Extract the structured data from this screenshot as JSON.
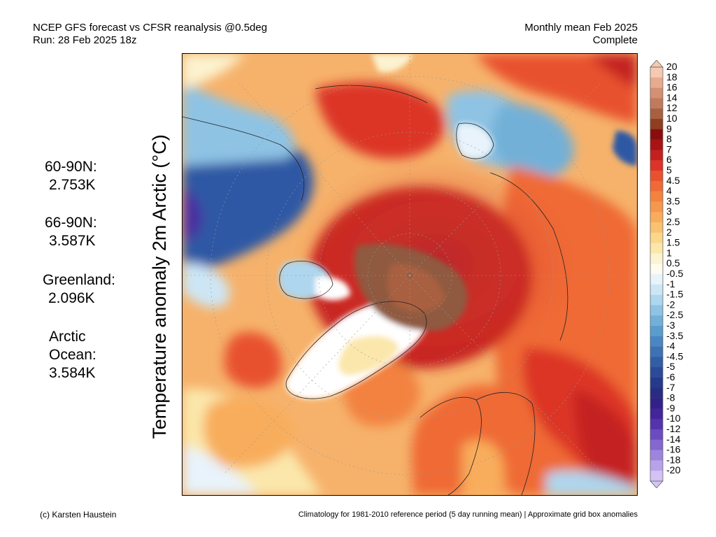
{
  "header": {
    "line1": "NCEP GFS forecast vs CFSR reanalysis @0.5deg",
    "line2": "Run: 28 Feb 2025 18z",
    "right1": "Monthly mean Feb 2025",
    "right2": "Complete"
  },
  "ylabel": "Temperature anomaly 2m Arctic (°C)",
  "stats": [
    {
      "label": "60-90N:",
      "value": "2.753K"
    },
    {
      "label": "66-90N:",
      "value": "3.587K"
    },
    {
      "label": "Greenland:",
      "value": "2.096K"
    },
    {
      "label": "Arctic",
      "label2": "Ocean:",
      "value": "3.584K"
    }
  ],
  "footer": {
    "left": "(c) Karsten Haustein",
    "right": "Climatology for 1981-2010 reference period (5 day running mean) | Approximate grid box anomalies"
  },
  "colorbar": {
    "labels": [
      "20",
      "18",
      "16",
      "14",
      "12",
      "10",
      "9",
      "8",
      "7",
      "6",
      "5",
      "4.5",
      "4",
      "3.5",
      "3",
      "2.5",
      "2",
      "1.5",
      "1",
      "0.5",
      "-0.5",
      "-1",
      "-1.5",
      "-2",
      "-2.5",
      "-3",
      "-3.5",
      "-4",
      "-4.5",
      "-5",
      "-6",
      "-7",
      "-8",
      "-9",
      "-10",
      "-12",
      "-14",
      "-16",
      "-18",
      "-20"
    ],
    "colors": [
      "#f6c9b3",
      "#e8ab90",
      "#d49072",
      "#c07a5c",
      "#a9603f",
      "#8f3f20",
      "#8a0d0d",
      "#a81313",
      "#c42020",
      "#dc3428",
      "#e8512f",
      "#ef6a36",
      "#f3823f",
      "#f6984b",
      "#f8ad5c",
      "#f9c270",
      "#fad78a",
      "#fbe7ab",
      "#fcf3d0",
      "#fffbef",
      "#e8f3fb",
      "#cde6f5",
      "#aed6ee",
      "#8ec3e4",
      "#72b0d8",
      "#5a9cce",
      "#4a87c2",
      "#3e72b4",
      "#335ea5",
      "#2b4b98",
      "#253a8b",
      "#2a2c82",
      "#33218a",
      "#43249a",
      "#5533ad",
      "#6b4cc0",
      "#8467cf",
      "#9d84dd",
      "#b8a3ea",
      "#d2c3f3"
    ]
  },
  "map": {
    "regions": [
      {
        "name": "central-arctic-anomaly",
        "color": "#8f5a3f"
      },
      {
        "name": "greenland",
        "color": "#ffffff"
      },
      {
        "name": "north-america-cold-anomaly",
        "color": "#3a5fa8"
      },
      {
        "name": "siberia-warm-anomaly",
        "color": "#e8512f"
      },
      {
        "name": "scandinavia",
        "color": "#ef6a36"
      }
    ]
  }
}
